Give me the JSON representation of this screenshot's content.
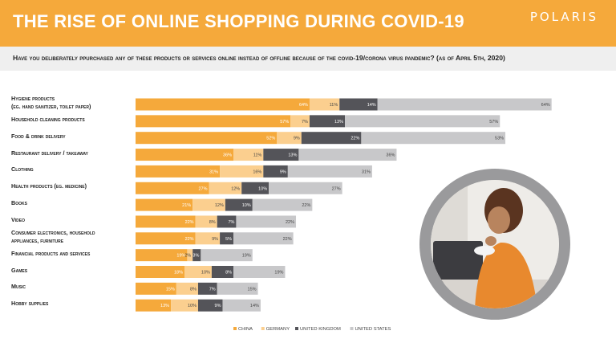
{
  "header": {
    "title": "THE RISE OF ONLINE SHOPPING DURING COVID-19",
    "logo": "POLARIS"
  },
  "question": "Have you deliberately ppurchased any of these products or services online instead of offline because of the covid-19/corona virus pandemic? (as of April 5th, 2020)",
  "colors": {
    "header": "#f5a93b",
    "china": "#f5a93b",
    "germany": "#fbcf8f",
    "united_kingdom": "#545459",
    "united_states": "#c8c8ca"
  },
  "chart_data": {
    "type": "bar",
    "orientation": "horizontal",
    "stacked": true,
    "categories": [
      "Hygiene products (eg. hand sanitizer, toilet paper)",
      "Household cleaning products",
      "Food & drink delivery",
      "Restaurant delivery / takeaway",
      "Clothing",
      "Health products (eg. medicine)",
      "Books",
      "Video",
      "Consumer electronics, household appliances, furniture",
      "Financial products and services",
      "Games",
      "Music",
      "Hobby supplies"
    ],
    "category_lines": [
      [
        "Hygiene products",
        "(eg. hand sanitizer, toilet paper)"
      ],
      [
        "Household cleaning products"
      ],
      [
        "Food & drink delivery"
      ],
      [
        "Restaurant delivery / takeaway"
      ],
      [
        "Clothing"
      ],
      [
        "Health products (eg. medicine)"
      ],
      [
        "Books"
      ],
      [
        "Video"
      ],
      [
        "Consumer electronics, household",
        "appliances, furniture"
      ],
      [
        "Financial products and services"
      ],
      [
        "Games"
      ],
      [
        "Music"
      ],
      [
        "Hobby supplies"
      ]
    ],
    "series": [
      {
        "name": "CHINA",
        "color": "#f5a93b",
        "values": [
          64,
          57,
          52,
          36,
          31,
          27,
          21,
          22,
          22,
          19,
          18,
          15,
          13
        ]
      },
      {
        "name": "GERMANY",
        "color": "#fbcf8f",
        "values": [
          11,
          7,
          9,
          11,
          16,
          12,
          12,
          8,
          9,
          2,
          10,
          8,
          10
        ]
      },
      {
        "name": "UNITED KINGDOM",
        "color": "#545459",
        "values": [
          14,
          13,
          22,
          13,
          9,
          10,
          10,
          7,
          5,
          3,
          8,
          7,
          9
        ]
      },
      {
        "name": "UNITED STATES",
        "color": "#c8c8ca",
        "values": [
          64,
          57,
          53,
          36,
          31,
          27,
          22,
          22,
          22,
          19,
          19,
          15,
          14
        ]
      }
    ],
    "value_suffix": "%",
    "legend_position": "bottom"
  }
}
